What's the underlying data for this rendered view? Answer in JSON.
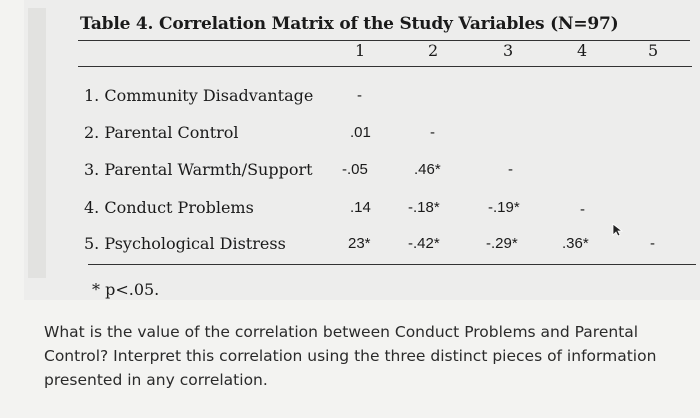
{
  "table": {
    "title": "Table 4. Correlation Matrix of the Study Variables (N=97)",
    "columns": [
      "1",
      "2",
      "3",
      "4",
      "5"
    ],
    "rows": [
      {
        "label": "1. Community Disadvantage",
        "cells": [
          "-",
          "",
          "",
          "",
          ""
        ]
      },
      {
        "label": "2. Parental Control",
        "cells": [
          ".01",
          "-",
          "",
          "",
          ""
        ]
      },
      {
        "label": "3. Parental Warmth/Support",
        "cells": [
          "-.05",
          ".46*",
          "-",
          "",
          ""
        ]
      },
      {
        "label": "4. Conduct Problems",
        "cells": [
          ".14",
          "-.18*",
          "-.19*",
          "-",
          ""
        ]
      },
      {
        "label": "5. Psychological Distress",
        "cells": [
          "23*",
          "-.42*",
          "-.29*",
          ".36*",
          "-"
        ]
      }
    ],
    "note": "* p<.05."
  },
  "question": {
    "text": "What is the value of the correlation between Conduct Problems and Parental Control? Interpret this correlation using the three distinct pieces of information presented in any correlation."
  },
  "icons": {
    "cursor": "pointer-arrow-icon"
  }
}
